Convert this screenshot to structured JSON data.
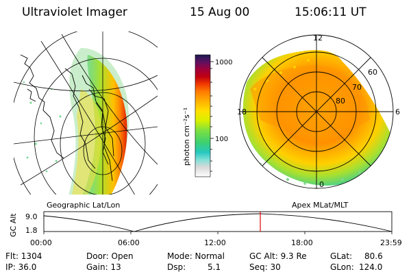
{
  "header": {
    "title": "Ultraviolet Imager",
    "date": "15 Aug 00",
    "time": "15:06:11 UT"
  },
  "colorbar": {
    "unit_label": "photon cm⁻²s⁻¹",
    "ticks": [
      "1000",
      "100"
    ]
  },
  "panels": {
    "left_label": "Geographic Lat/Lon",
    "right_label": "Apex MLat/MLT",
    "mlt_labels": {
      "top": "12",
      "left": "18",
      "right": "6",
      "bottom": "0"
    },
    "mlat_labels": [
      "60",
      "70",
      "80"
    ]
  },
  "altitude_plot": {
    "ylabel": "GC Alt",
    "yticks": [
      "9.0",
      "1.8"
    ],
    "xticks": [
      "00:00",
      "06:00",
      "12:00",
      "18:00",
      "23:59"
    ],
    "marker_time": "15:06",
    "marker_color": "#e00000"
  },
  "status": {
    "flt": "Flt: 1304",
    "ip": "IP: 36.0",
    "door": "Door: Open",
    "gain": "Gain: 13",
    "mode": "Mode: Normal",
    "dsp_label": "Dsp:",
    "dsp_value": "5.1",
    "gcalt": "GC Alt: 9.3 Re",
    "seq": "Seq: 30",
    "glat_label": "GLat:",
    "glat_value": "80.6",
    "glon_label": "GLon:",
    "glon_value": "124.0"
  }
}
